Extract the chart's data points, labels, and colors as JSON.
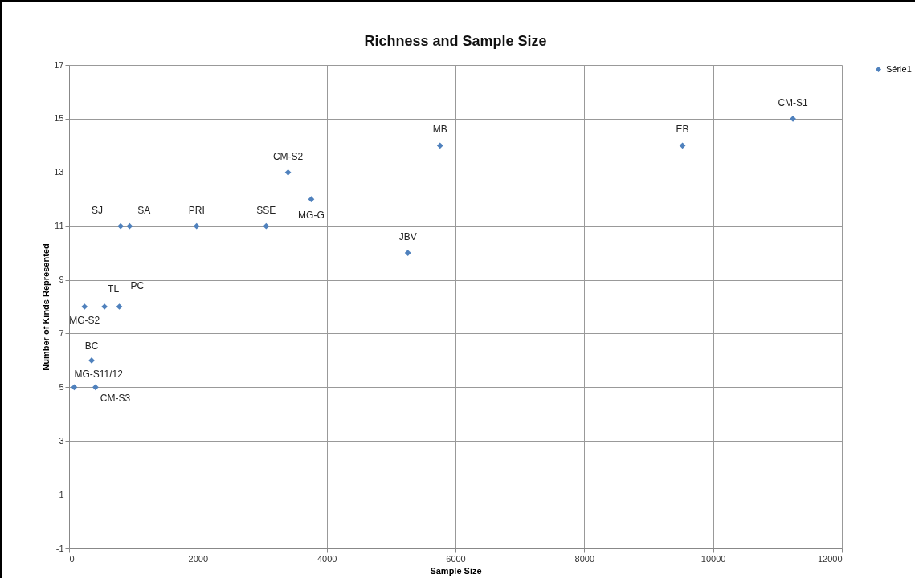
{
  "chart_data": {
    "type": "scatter",
    "title": "Richness and Sample Size",
    "xlabel": "Sample Size",
    "ylabel": "Number of Kinds Represented",
    "x": [
      80,
      410,
      350,
      240,
      550,
      780,
      800,
      940,
      1980,
      3060,
      3400,
      3760,
      5260,
      5760,
      9525,
      11240
    ],
    "series": [
      {
        "name": "Série1",
        "color": "#4f81bd",
        "values": [
          5,
          5,
          6,
          8,
          8,
          8,
          11,
          11,
          11,
          11,
          13,
          12,
          10,
          14,
          14,
          15
        ],
        "value_labels": [
          "MG-S11/12",
          "CM-S3",
          "BC",
          "MG-S2",
          "TL",
          "PC",
          "SJ",
          "SA",
          "PRI",
          "SSE",
          "CM-S2",
          "MG-G",
          "JBV",
          "MB",
          "EB",
          "CM-S1"
        ]
      }
    ],
    "xlim": [
      0,
      12000
    ],
    "xticks": [
      0,
      2000,
      4000,
      6000,
      8000,
      10000,
      12000
    ],
    "ylim": [
      -1,
      17
    ],
    "yticks": [
      -1,
      1,
      3,
      5,
      7,
      9,
      11,
      13,
      15,
      17
    ],
    "grid": true,
    "legend": "right",
    "marker": "diamond"
  }
}
